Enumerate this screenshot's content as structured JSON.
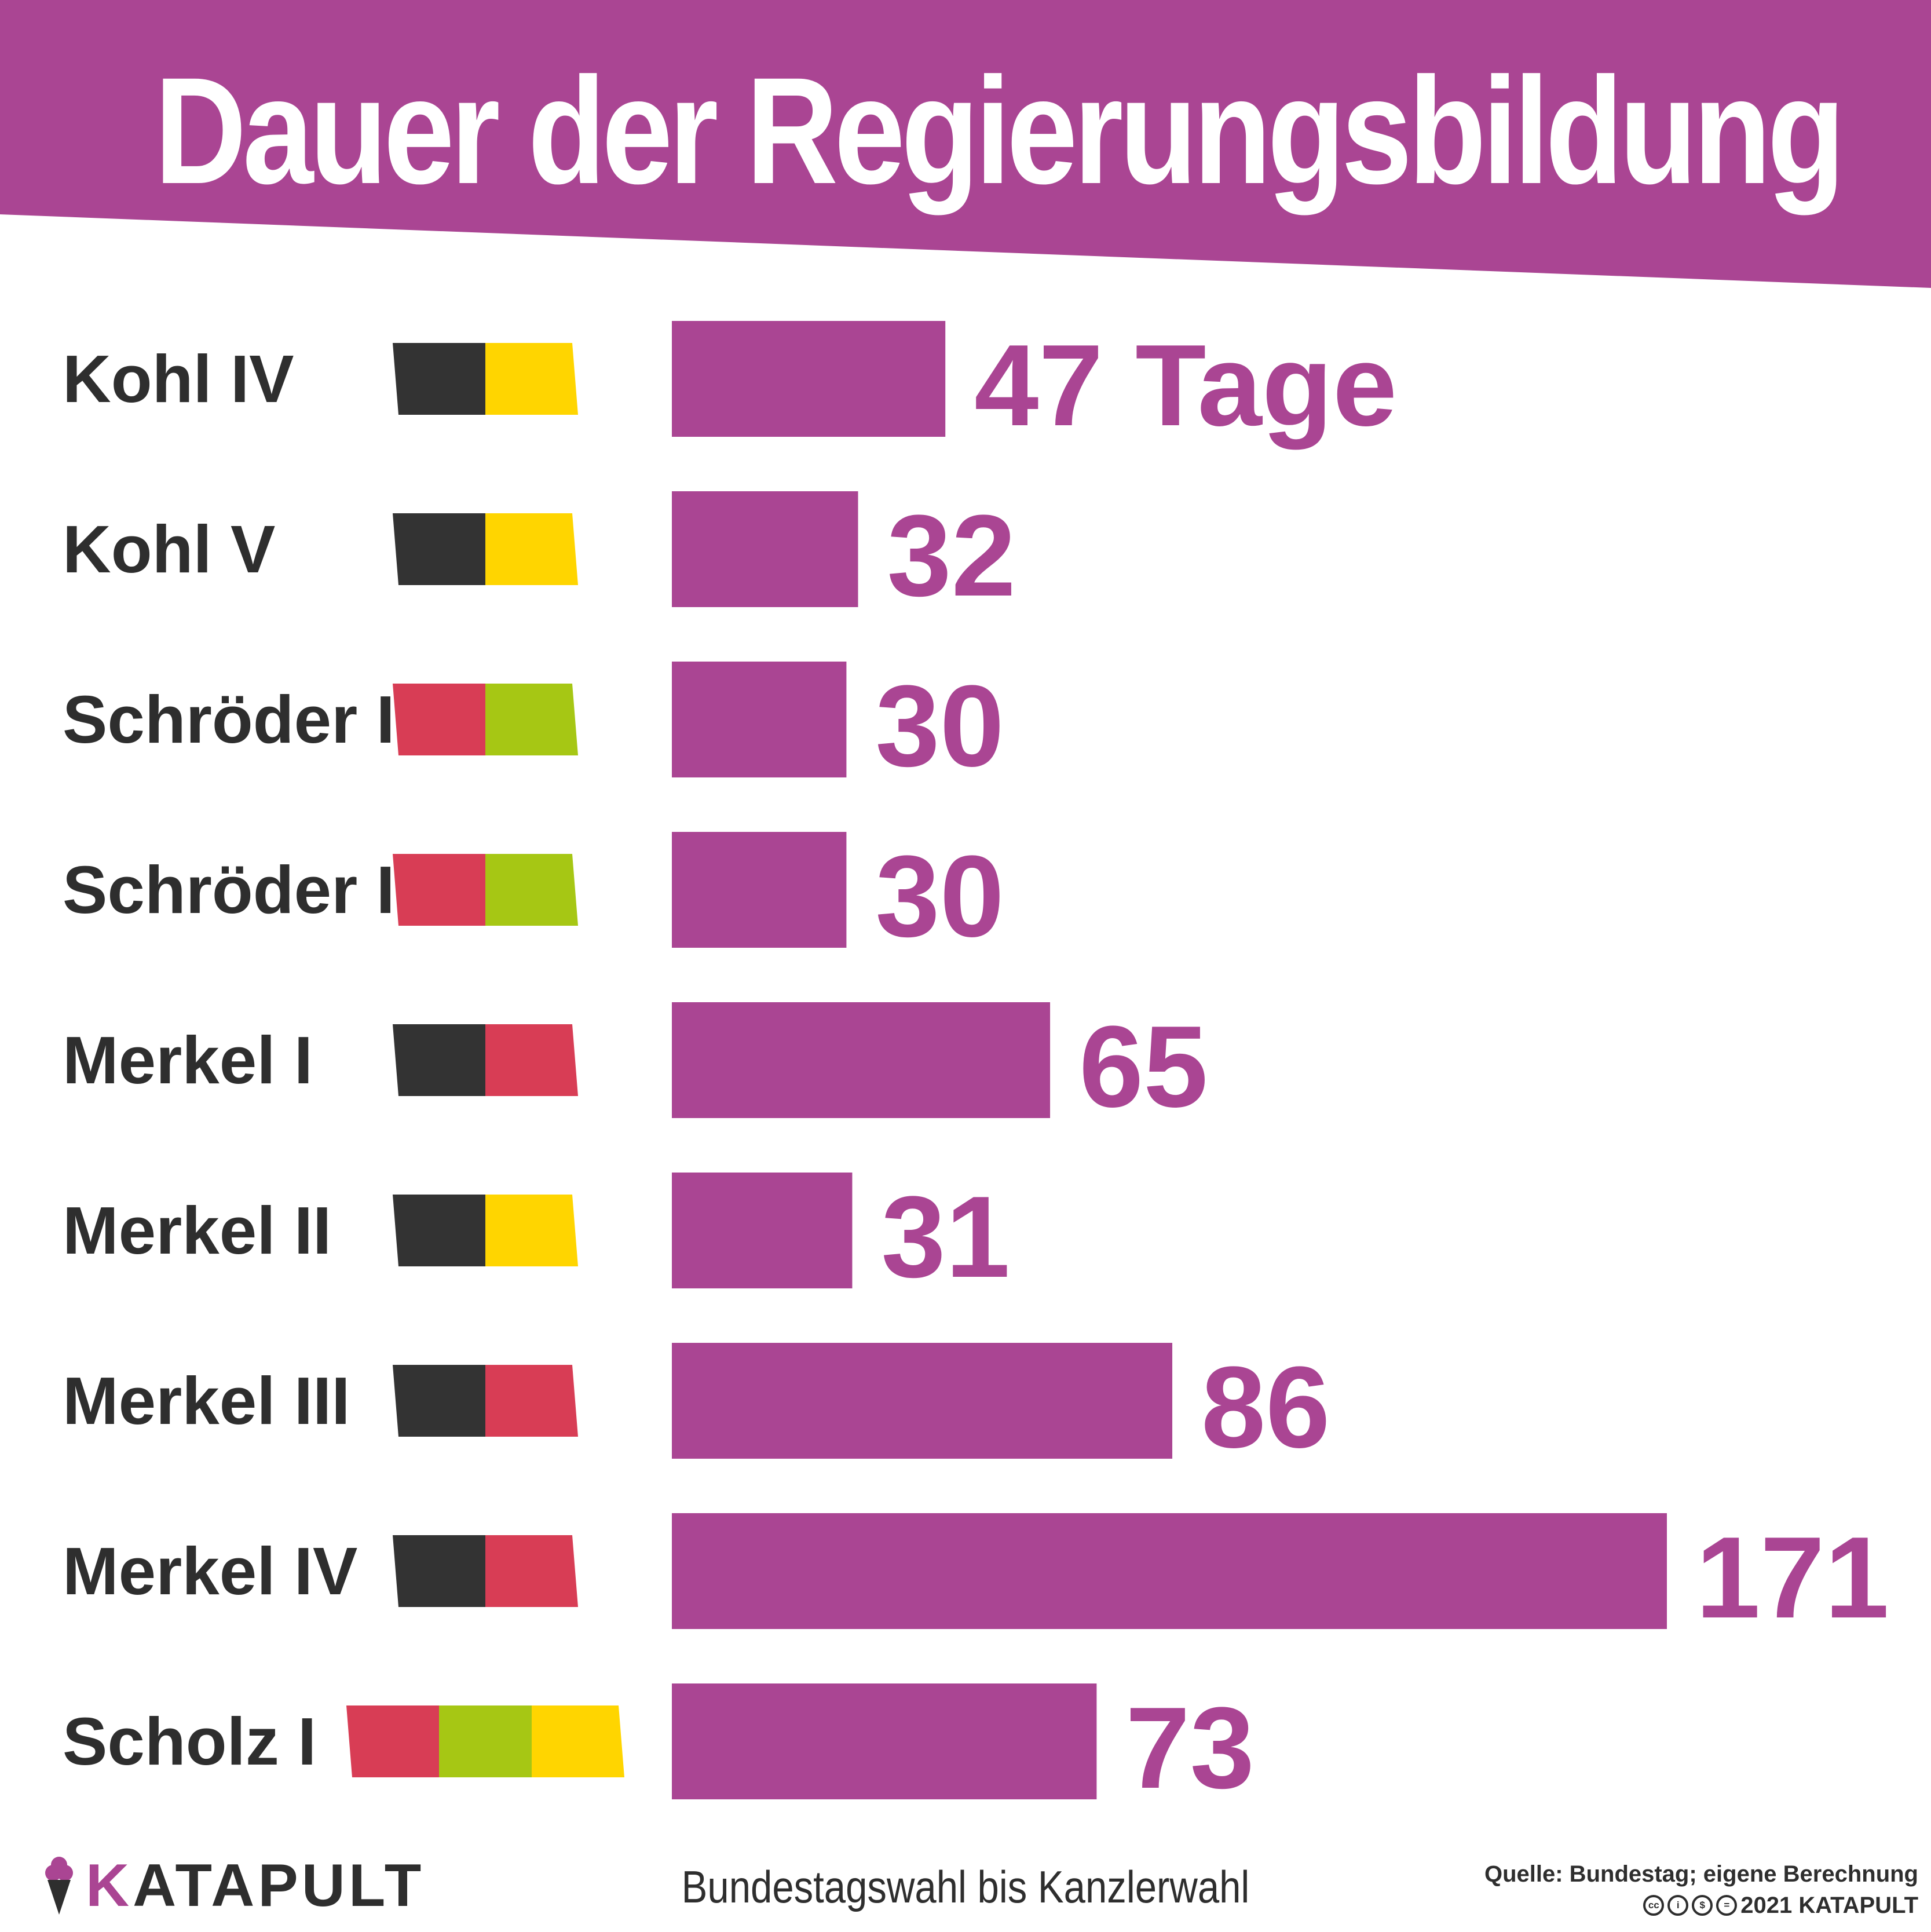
{
  "colors": {
    "accent": "#aa4593",
    "text": "#2e2e2e",
    "union": "#333333",
    "fdp": "#ffd500",
    "spd": "#d83d55",
    "green": "#a6c714"
  },
  "chart_data": {
    "type": "bar",
    "orientation": "horizontal",
    "title": "Dauer der Regierungsbildung",
    "subtitle": "Bundestagswahl bis Kanzlerwahl",
    "unit": "Tage",
    "categories": [
      "Kohl IV",
      "Kohl V",
      "Schröder I",
      "Schröder II",
      "Merkel I",
      "Merkel II",
      "Merkel III",
      "Merkel IV",
      "Scholz I"
    ],
    "values": [
      47,
      32,
      30,
      30,
      65,
      31,
      86,
      171,
      73
    ],
    "value_labels": [
      "47 Tage",
      "32",
      "30",
      "30",
      "65",
      "31",
      "86",
      "171",
      "73"
    ],
    "coalition_colors": [
      [
        "#333333",
        "#ffd500"
      ],
      [
        "#333333",
        "#ffd500"
      ],
      [
        "#d83d55",
        "#a6c714"
      ],
      [
        "#d83d55",
        "#a6c714"
      ],
      [
        "#333333",
        "#d83d55"
      ],
      [
        "#333333",
        "#ffd500"
      ],
      [
        "#333333",
        "#d83d55"
      ],
      [
        "#333333",
        "#d83d55"
      ],
      [
        "#d83d55",
        "#a6c714",
        "#ffd500"
      ]
    ],
    "xlim": [
      0,
      171
    ],
    "grid": false,
    "legend": "none"
  },
  "footer": {
    "logo_k": "K",
    "logo_rest": "ATAPULT",
    "source": "Quelle: Bundestag; eigene Berechnung",
    "copyright": "2021 KATAPULT",
    "license_icons": [
      "cc-icon",
      "by-icon",
      "nc-icon",
      "nd-icon"
    ]
  }
}
